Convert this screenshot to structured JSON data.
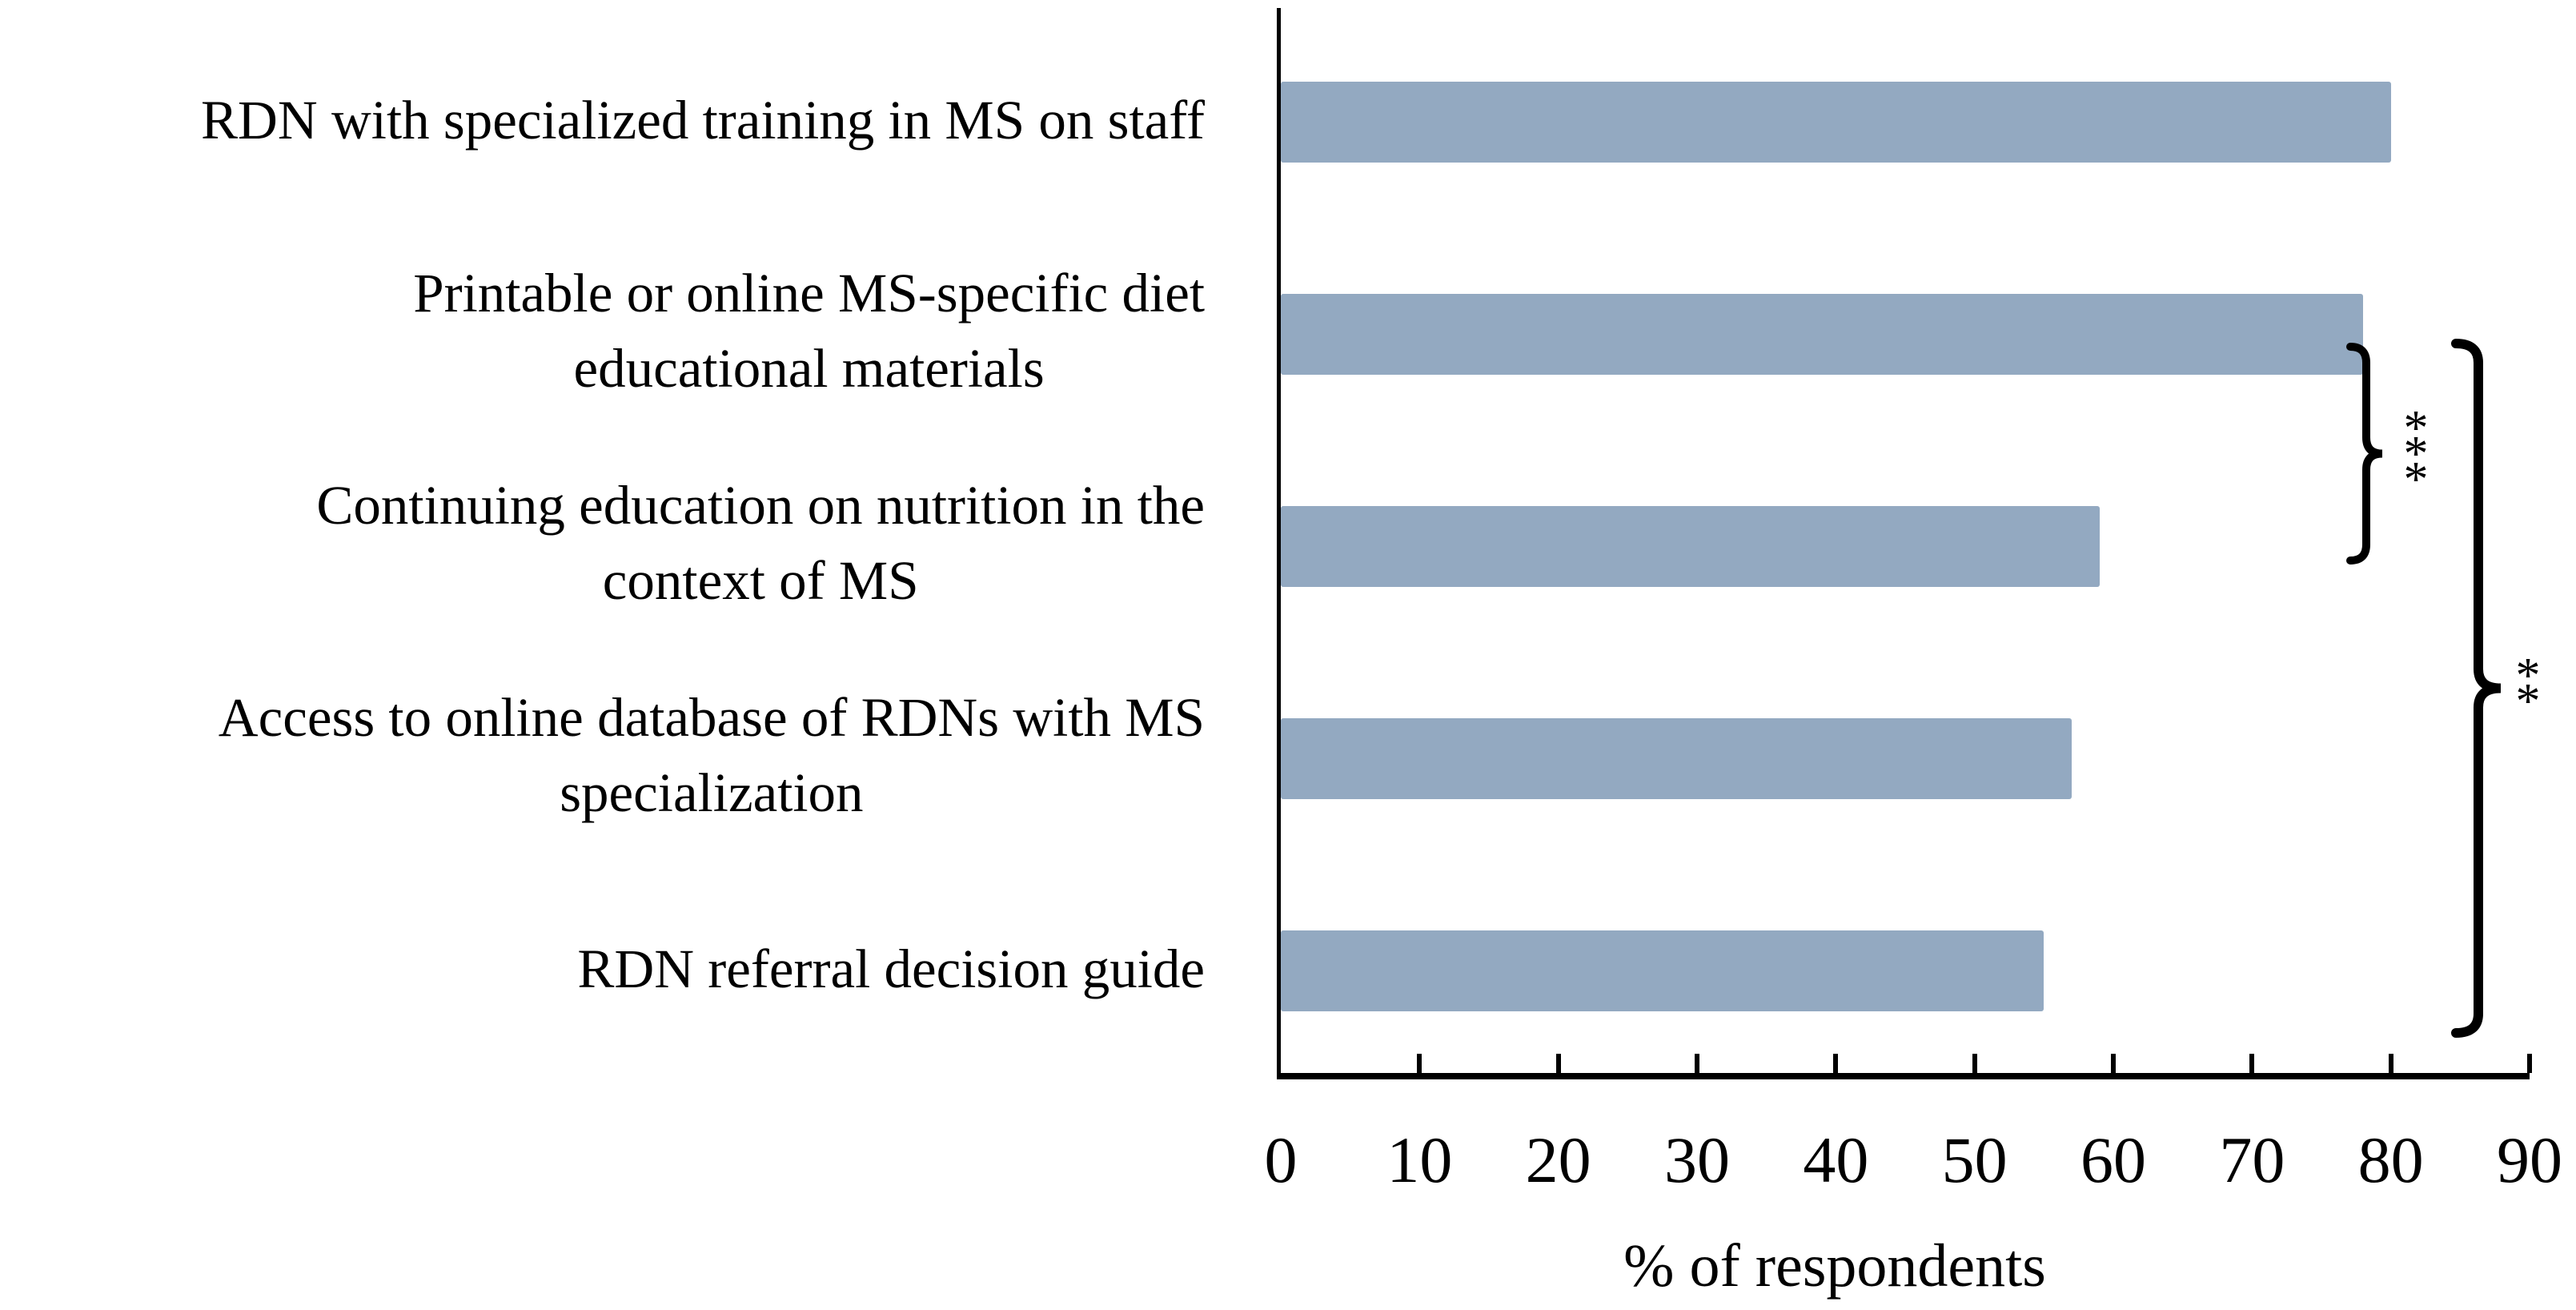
{
  "figure": {
    "background": "#ffffff",
    "axis_color": "#000000"
  },
  "chart_data": {
    "type": "bar",
    "orientation": "horizontal",
    "title": "",
    "xlabel": "% of respondents",
    "ylabel": "",
    "xlim": [
      0,
      90
    ],
    "xticks": [
      0,
      10,
      20,
      30,
      40,
      50,
      60,
      70,
      80,
      90
    ],
    "grid": false,
    "legend": "none",
    "bar_color": "#93a9c1",
    "categories": [
      "RDN with specialized training in MS on staff",
      "Printable or online MS-specific diet\neducational materials",
      "Continuing education on nutrition in the\ncontext of MS",
      "Access to online database of RDNs with MS\nspecialization",
      "RDN referral decision guide"
    ],
    "values": [
      80,
      78,
      59,
      57,
      55
    ],
    "significance": [
      {
        "stars": "***",
        "from_category_index": 1,
        "to_category_index": 2
      },
      {
        "stars": "**",
        "from_category_index": 1,
        "to_category_index": 4
      }
    ]
  }
}
